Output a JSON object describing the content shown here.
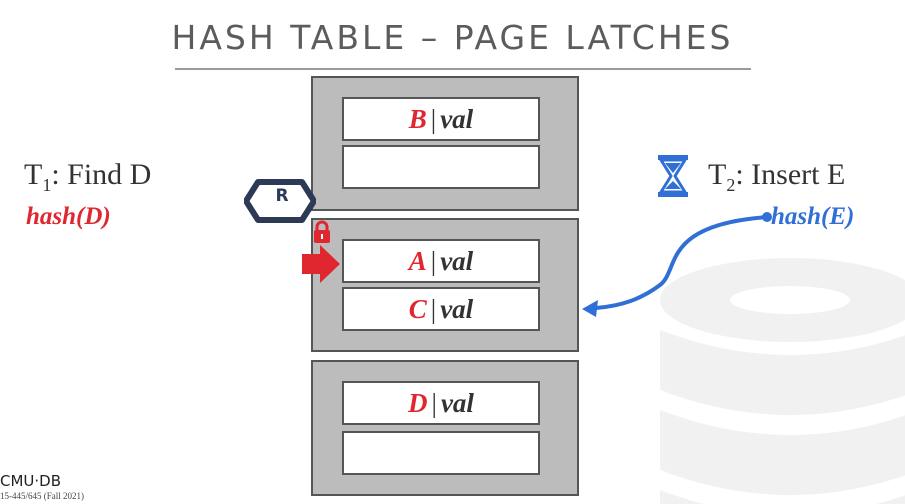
{
  "title": "HASH TABLE – PAGE LATCHES",
  "pages": [
    {
      "slots": [
        {
          "key": "B",
          "value": "val"
        },
        {
          "key": "",
          "value": ""
        }
      ]
    },
    {
      "slots": [
        {
          "key": "A",
          "value": "val"
        },
        {
          "key": "C",
          "value": "val"
        }
      ]
    },
    {
      "slots": [
        {
          "key": "D",
          "value": "val"
        },
        {
          "key": "",
          "value": ""
        }
      ]
    }
  ],
  "t1": {
    "name": "T",
    "sub": "1",
    "action": ": Find D",
    "hash": "hash(D)"
  },
  "t2": {
    "name": "T",
    "sub": "2",
    "action": ": Insert E",
    "hash": "hash(E)"
  },
  "latch_badge": "R",
  "footer": {
    "logo": "CMU·DB",
    "course": "15-445/645 (Fall 2021)"
  },
  "colors": {
    "red": "#e0272f",
    "blue": "#2f6fd6",
    "page": "#bcbcbc",
    "title": "#5c5c5c"
  },
  "icons": [
    "lock-icon",
    "hourglass-icon",
    "arrow-right-icon",
    "read-latch-hexagon-icon",
    "database-background-icon"
  ]
}
